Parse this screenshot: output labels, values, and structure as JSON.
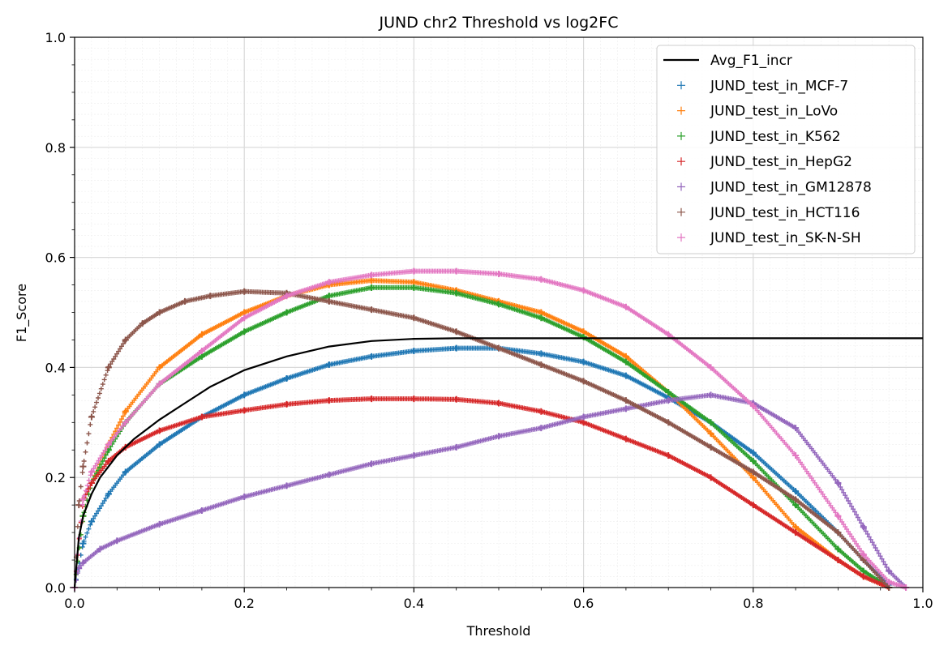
{
  "chart_data": {
    "type": "line",
    "title": "JUND chr2 Threshold vs log2FC",
    "xlabel": "Threshold",
    "ylabel": "F1_Score",
    "xlim": [
      0,
      1
    ],
    "ylim": [
      0,
      1
    ],
    "xticks": [
      "0.0",
      "0.2",
      "0.4",
      "0.6",
      "0.8",
      "1.0"
    ],
    "yticks": [
      "0.0",
      "0.2",
      "0.4",
      "0.6",
      "0.8",
      "1.0"
    ],
    "grid": true,
    "minor_grid": true,
    "legend_position": "top-right",
    "series": [
      {
        "name": "Avg_F1_incr",
        "style": "line",
        "color": "#000000",
        "x": [
          0,
          0.005,
          0.01,
          0.02,
          0.03,
          0.05,
          0.07,
          0.1,
          0.13,
          0.16,
          0.2,
          0.25,
          0.3,
          0.35,
          0.4,
          0.45,
          0.5,
          0.6,
          0.7,
          0.8,
          0.9,
          1.0
        ],
        "y": [
          0.0,
          0.09,
          0.13,
          0.17,
          0.2,
          0.24,
          0.27,
          0.305,
          0.335,
          0.365,
          0.395,
          0.42,
          0.438,
          0.448,
          0.452,
          0.453,
          0.453,
          0.453,
          0.453,
          0.453,
          0.453,
          0.453
        ]
      },
      {
        "name": "JUND_test_in_MCF-7",
        "style": "marker",
        "color": "#1f77b4",
        "x": [
          0,
          0.01,
          0.02,
          0.04,
          0.06,
          0.1,
          0.15,
          0.2,
          0.25,
          0.3,
          0.35,
          0.4,
          0.45,
          0.5,
          0.55,
          0.6,
          0.65,
          0.7,
          0.75,
          0.8,
          0.85,
          0.9,
          0.93,
          0.96
        ],
        "y": [
          0.0,
          0.08,
          0.12,
          0.17,
          0.21,
          0.26,
          0.31,
          0.35,
          0.38,
          0.405,
          0.42,
          0.43,
          0.435,
          0.435,
          0.425,
          0.41,
          0.385,
          0.345,
          0.3,
          0.245,
          0.175,
          0.1,
          0.05,
          0.005
        ]
      },
      {
        "name": "JUND_test_in_LoVo",
        "style": "marker",
        "color": "#ff7f0e",
        "x": [
          0,
          0.01,
          0.02,
          0.04,
          0.06,
          0.1,
          0.15,
          0.2,
          0.25,
          0.3,
          0.35,
          0.4,
          0.45,
          0.5,
          0.55,
          0.6,
          0.65,
          0.7,
          0.75,
          0.8,
          0.85,
          0.9,
          0.93,
          0.96
        ],
        "y": [
          0.0,
          0.13,
          0.19,
          0.26,
          0.32,
          0.4,
          0.46,
          0.5,
          0.53,
          0.55,
          0.558,
          0.555,
          0.54,
          0.52,
          0.5,
          0.465,
          0.42,
          0.355,
          0.28,
          0.2,
          0.11,
          0.05,
          0.02,
          0.0
        ]
      },
      {
        "name": "JUND_test_in_K562",
        "style": "marker",
        "color": "#2ca02c",
        "x": [
          0,
          0.01,
          0.02,
          0.04,
          0.06,
          0.1,
          0.15,
          0.2,
          0.25,
          0.3,
          0.35,
          0.4,
          0.45,
          0.5,
          0.55,
          0.6,
          0.65,
          0.7,
          0.75,
          0.8,
          0.85,
          0.9,
          0.93,
          0.96
        ],
        "y": [
          0.0,
          0.13,
          0.19,
          0.25,
          0.3,
          0.37,
          0.42,
          0.465,
          0.5,
          0.53,
          0.545,
          0.545,
          0.535,
          0.515,
          0.49,
          0.455,
          0.41,
          0.355,
          0.3,
          0.23,
          0.15,
          0.07,
          0.03,
          0.0
        ]
      },
      {
        "name": "JUND_test_in_HepG2",
        "style": "marker",
        "color": "#d62728",
        "x": [
          0,
          0.01,
          0.02,
          0.04,
          0.06,
          0.1,
          0.15,
          0.2,
          0.25,
          0.3,
          0.35,
          0.4,
          0.45,
          0.5,
          0.55,
          0.6,
          0.65,
          0.7,
          0.75,
          0.8,
          0.85,
          0.9,
          0.93,
          0.96
        ],
        "y": [
          0.0,
          0.16,
          0.19,
          0.23,
          0.255,
          0.285,
          0.31,
          0.322,
          0.333,
          0.34,
          0.343,
          0.343,
          0.342,
          0.335,
          0.32,
          0.3,
          0.27,
          0.24,
          0.2,
          0.15,
          0.1,
          0.05,
          0.02,
          0.0
        ]
      },
      {
        "name": "JUND_test_in_GM12878",
        "style": "marker",
        "color": "#9467bd",
        "x": [
          0,
          0.005,
          0.01,
          0.03,
          0.05,
          0.1,
          0.15,
          0.2,
          0.25,
          0.3,
          0.35,
          0.4,
          0.45,
          0.5,
          0.55,
          0.6,
          0.65,
          0.7,
          0.75,
          0.8,
          0.85,
          0.9,
          0.93,
          0.96,
          0.98
        ],
        "y": [
          0.0,
          0.035,
          0.045,
          0.07,
          0.085,
          0.115,
          0.14,
          0.165,
          0.185,
          0.205,
          0.225,
          0.24,
          0.255,
          0.275,
          0.29,
          0.31,
          0.325,
          0.34,
          0.35,
          0.335,
          0.29,
          0.19,
          0.11,
          0.03,
          0.0
        ]
      },
      {
        "name": "JUND_test_in_HCT116",
        "style": "marker",
        "color": "#8c564b",
        "x": [
          0,
          0.005,
          0.01,
          0.02,
          0.04,
          0.06,
          0.08,
          0.1,
          0.13,
          0.16,
          0.2,
          0.25,
          0.3,
          0.35,
          0.4,
          0.45,
          0.5,
          0.55,
          0.6,
          0.65,
          0.7,
          0.75,
          0.8,
          0.85,
          0.9,
          0.93,
          0.96
        ],
        "y": [
          0.0,
          0.15,
          0.22,
          0.31,
          0.4,
          0.45,
          0.48,
          0.5,
          0.52,
          0.53,
          0.538,
          0.535,
          0.52,
          0.505,
          0.49,
          0.465,
          0.435,
          0.405,
          0.375,
          0.34,
          0.3,
          0.255,
          0.21,
          0.16,
          0.1,
          0.05,
          0.0
        ]
      },
      {
        "name": "JUND_test_in_SK-N-SH",
        "style": "marker",
        "color": "#e377c2",
        "x": [
          0,
          0.01,
          0.02,
          0.04,
          0.06,
          0.1,
          0.15,
          0.2,
          0.25,
          0.3,
          0.35,
          0.4,
          0.45,
          0.5,
          0.55,
          0.6,
          0.65,
          0.7,
          0.75,
          0.8,
          0.85,
          0.9,
          0.93,
          0.96,
          0.98
        ],
        "y": [
          0.0,
          0.16,
          0.21,
          0.26,
          0.3,
          0.37,
          0.43,
          0.49,
          0.53,
          0.555,
          0.568,
          0.575,
          0.575,
          0.57,
          0.56,
          0.54,
          0.51,
          0.46,
          0.4,
          0.33,
          0.24,
          0.13,
          0.06,
          0.01,
          0.0
        ]
      }
    ]
  }
}
